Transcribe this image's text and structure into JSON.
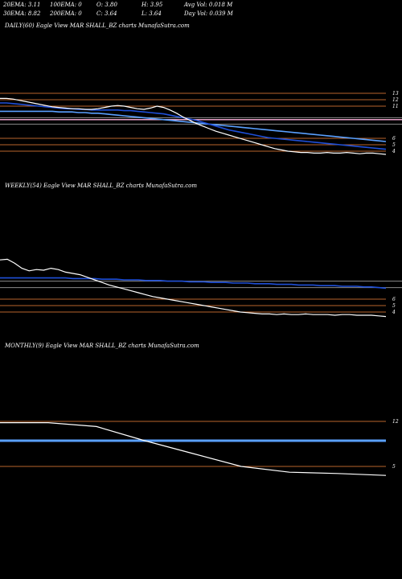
{
  "header": {
    "row1": [
      "20EMA: 3.11",
      "100EMA: 0",
      "O: 3.80",
      "H: 3.95",
      "Avg Vol: 0.018  M"
    ],
    "row2": [
      "30EMA: 8.82",
      "200EMA: 0",
      "C: 3.64",
      "L: 3.64",
      "Day Vol: 0.039 M"
    ]
  },
  "colors": {
    "background": "#000000",
    "price_line": "#ffffff",
    "ema_fast": "#1f4fd8",
    "ema_slow": "#5aa0ff",
    "level_line": "#b8642c",
    "grey_line": "#8a8a8a",
    "pink_line": "#e8a0c8"
  },
  "chart_data": [
    {
      "type": "line",
      "title": "DAILY(60) Eagle  View  MAR                SHALL_BZ charts MunafaSutra.com",
      "ylim": [
        2.5,
        15
      ],
      "level_ticks": [
        "13",
        "12",
        "11",
        "6",
        "5",
        "4"
      ],
      "level_values": [
        13,
        12,
        11,
        6,
        5,
        4
      ],
      "grey_levels": [
        9.2,
        8.2
      ],
      "pink_levels": [
        8.9
      ],
      "ema_levels": [],
      "series": [
        {
          "values": [
            12.2,
            12.2,
            12.1,
            11.9,
            11.7,
            11.5,
            11.3,
            11.1,
            10.9,
            10.8,
            10.7,
            10.6,
            10.6,
            10.5,
            10.5,
            10.6,
            10.8,
            11.0,
            11.1,
            11.0,
            10.8,
            10.6,
            10.5,
            10.7,
            11.0,
            10.8,
            10.4,
            9.9,
            9.3,
            8.8,
            8.3,
            7.9,
            7.5,
            7.1,
            6.8,
            6.5,
            6.2,
            5.9,
            5.6,
            5.3,
            5.0,
            4.7,
            4.4,
            4.2,
            4.0,
            3.9,
            3.8,
            3.8,
            3.7,
            3.7,
            3.8,
            3.7,
            3.7,
            3.8,
            3.7,
            3.6,
            3.7,
            3.7,
            3.6,
            3.5
          ]
        },
        {
          "values": [
            11.5,
            11.5,
            11.4,
            11.3,
            11.2,
            11.1,
            11.0,
            10.9,
            10.8,
            10.7,
            10.6,
            10.6,
            10.5,
            10.5,
            10.4,
            10.4,
            10.4,
            10.4,
            10.4,
            10.3,
            10.3,
            10.2,
            10.1,
            10.0,
            9.9,
            9.8,
            9.6,
            9.4,
            9.2,
            9.0,
            8.8,
            8.5,
            8.2,
            7.9,
            7.6,
            7.3,
            7.1,
            6.9,
            6.7,
            6.5,
            6.3,
            6.1,
            6.0,
            5.9,
            5.8,
            5.7,
            5.6,
            5.5,
            5.4,
            5.3,
            5.2,
            5.1,
            5.0,
            4.9,
            4.8,
            4.7,
            4.6,
            4.5,
            4.4,
            4.3
          ]
        },
        {
          "values": [
            10.2,
            10.2,
            10.2,
            10.2,
            10.2,
            10.2,
            10.2,
            10.2,
            10.2,
            10.1,
            10.1,
            10.1,
            10.0,
            10.0,
            9.9,
            9.9,
            9.8,
            9.7,
            9.6,
            9.5,
            9.4,
            9.3,
            9.2,
            9.1,
            9.0,
            8.9,
            8.8,
            8.7,
            8.6,
            8.5,
            8.4,
            8.3,
            8.2,
            8.1,
            8.0,
            7.9,
            7.8,
            7.7,
            7.6,
            7.5,
            7.4,
            7.3,
            7.2,
            7.1,
            7.0,
            6.9,
            6.8,
            6.7,
            6.6,
            6.5,
            6.4,
            6.3,
            6.2,
            6.1,
            6.0,
            5.9,
            5.8,
            5.7,
            5.6,
            5.5
          ]
        }
      ]
    },
    {
      "type": "line",
      "title": "WEEKLY(54) Eagle  View  MAR                SHALL_BZ charts MunafaSutra.com",
      "ylim": [
        2.5,
        15
      ],
      "level_ticks": [
        "6",
        "5",
        "4"
      ],
      "level_values": [
        6,
        5,
        4
      ],
      "grey_levels": [
        8.8,
        7.8
      ],
      "pink_levels": [],
      "ema_levels": [],
      "series": [
        {
          "values": [
            12.1,
            12.2,
            11.6,
            10.8,
            10.4,
            10.6,
            10.5,
            10.8,
            10.6,
            10.2,
            10.0,
            9.8,
            9.4,
            9.0,
            8.6,
            8.2,
            7.9,
            7.6,
            7.3,
            7.0,
            6.7,
            6.4,
            6.2,
            6.0,
            5.8,
            5.6,
            5.4,
            5.2,
            5.0,
            4.8,
            4.6,
            4.4,
            4.2,
            4.0,
            3.9,
            3.8,
            3.7,
            3.7,
            3.6,
            3.7,
            3.6,
            3.6,
            3.7,
            3.6,
            3.6,
            3.6,
            3.5,
            3.6,
            3.6,
            3.5,
            3.5,
            3.5,
            3.4,
            3.3
          ]
        },
        {
          "values": [
            9.3,
            9.3,
            9.3,
            9.3,
            9.3,
            9.3,
            9.3,
            9.3,
            9.3,
            9.3,
            9.2,
            9.2,
            9.2,
            9.2,
            9.1,
            9.1,
            9.1,
            9.0,
            9.0,
            9.0,
            8.9,
            8.9,
            8.9,
            8.8,
            8.8,
            8.8,
            8.7,
            8.7,
            8.7,
            8.6,
            8.6,
            8.6,
            8.5,
            8.5,
            8.5,
            8.4,
            8.4,
            8.4,
            8.3,
            8.3,
            8.3,
            8.2,
            8.2,
            8.2,
            8.1,
            8.1,
            8.1,
            8.0,
            8.0,
            8.0,
            7.9,
            7.9,
            7.8,
            7.7
          ]
        }
      ]
    },
    {
      "type": "line",
      "title": "MONTHLY(9) Eagle  View  MAR                SHALL_BZ charts MunafaSutra.com",
      "ylim": [
        2.5,
        15
      ],
      "level_ticks": [
        "12",
        "5"
      ],
      "level_values": [
        12,
        5
      ],
      "grey_levels": [],
      "pink_levels": [],
      "ema_levels": [
        9.0
      ],
      "series": [
        {
          "values": [
            11.8,
            11.8,
            11.2,
            9.0,
            7.0,
            5.0,
            4.1,
            3.9,
            3.6
          ]
        }
      ]
    }
  ]
}
